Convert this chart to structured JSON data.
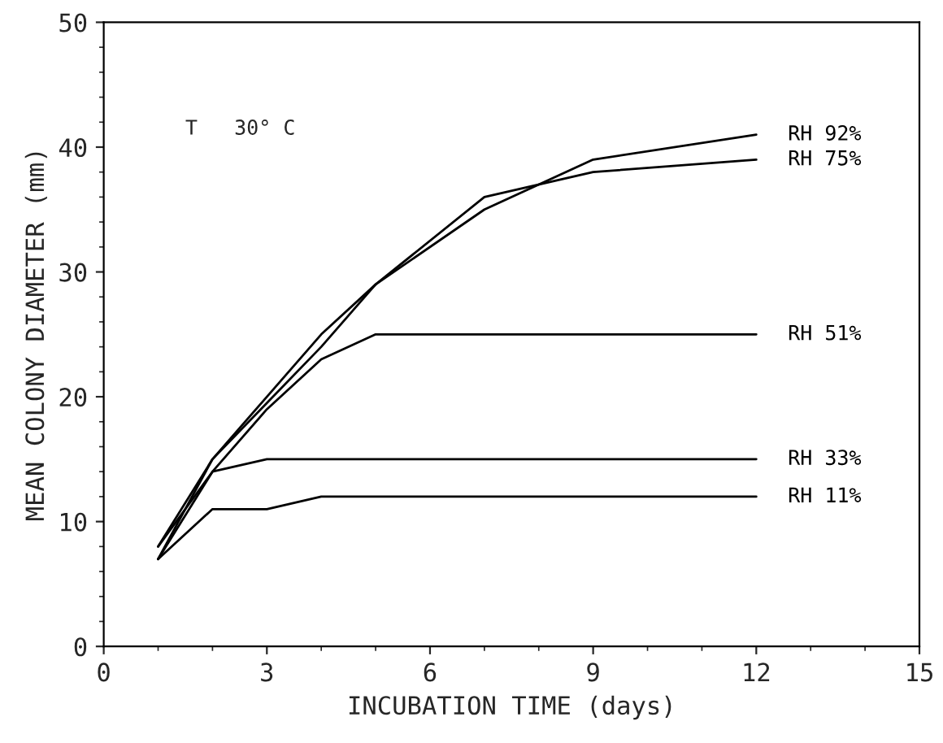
{
  "chart_data": {
    "type": "line",
    "xlabel": "INCUBATION TIME (days)",
    "ylabel": "MEAN COLONY DIAMETER (mm)",
    "x": [
      1,
      2,
      3,
      4,
      5,
      7,
      9,
      12
    ],
    "series": [
      {
        "name": "RH 92%",
        "color": "#000000",
        "values": [
          7,
          15,
          20,
          25,
          29,
          35,
          39,
          41
        ]
      },
      {
        "name": "RH 75%",
        "color": "#000000",
        "values": [
          8,
          15,
          19.5,
          24,
          29,
          36,
          38,
          39
        ]
      },
      {
        "name": "RH 51%",
        "color": "#000000",
        "values": [
          7,
          14,
          19,
          23,
          25,
          25,
          25,
          25
        ]
      },
      {
        "name": "RH 33%",
        "color": "#000000",
        "values": [
          8,
          14,
          15,
          15,
          15,
          15,
          15,
          15
        ]
      },
      {
        "name": "RH 11%",
        "color": "#000000",
        "values": [
          7,
          11,
          11,
          12,
          12,
          12,
          12,
          12
        ]
      }
    ],
    "annotations": [
      "T   30° C"
    ],
    "xlim": [
      0,
      15
    ],
    "ylim": [
      0,
      50
    ],
    "xticks": [
      0,
      3,
      6,
      9,
      12,
      15
    ],
    "yticks": [
      0,
      10,
      20,
      30,
      40,
      50
    ],
    "grid": false,
    "legend": false,
    "marker": "none",
    "line_style": "solid"
  }
}
